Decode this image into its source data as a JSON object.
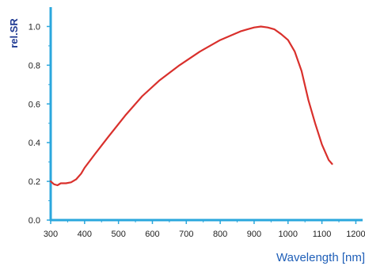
{
  "chart_data": {
    "type": "line",
    "title": "",
    "xlabel": "Wavelength [nm]",
    "ylabel": "rel.SR",
    "xlim": [
      300,
      1220
    ],
    "ylim": [
      0.0,
      1.1
    ],
    "x_ticks": [
      300,
      400,
      500,
      600,
      700,
      800,
      900,
      1000,
      1100,
      1200
    ],
    "y_ticks": [
      0.0,
      0.2,
      0.4,
      0.6,
      0.8,
      1.0
    ],
    "grid": false,
    "legend": "none",
    "colors": {
      "axis": "#2aa7dd",
      "line": "#d9302c"
    },
    "series": [
      {
        "x": [
          300,
          310,
          320,
          330,
          345,
          360,
          375,
          390,
          400,
          430,
          470,
          520,
          570,
          620,
          680,
          740,
          800,
          840,
          860,
          880,
          900,
          920,
          940,
          960,
          980,
          1000,
          1020,
          1040,
          1060,
          1080,
          1100,
          1110,
          1120,
          1130
        ],
        "y": [
          0.2,
          0.185,
          0.18,
          0.19,
          0.19,
          0.195,
          0.21,
          0.24,
          0.27,
          0.34,
          0.43,
          0.54,
          0.64,
          0.72,
          0.8,
          0.87,
          0.93,
          0.96,
          0.975,
          0.985,
          0.995,
          1.0,
          0.995,
          0.985,
          0.96,
          0.93,
          0.87,
          0.77,
          0.62,
          0.5,
          0.39,
          0.35,
          0.31,
          0.29
        ]
      }
    ]
  }
}
